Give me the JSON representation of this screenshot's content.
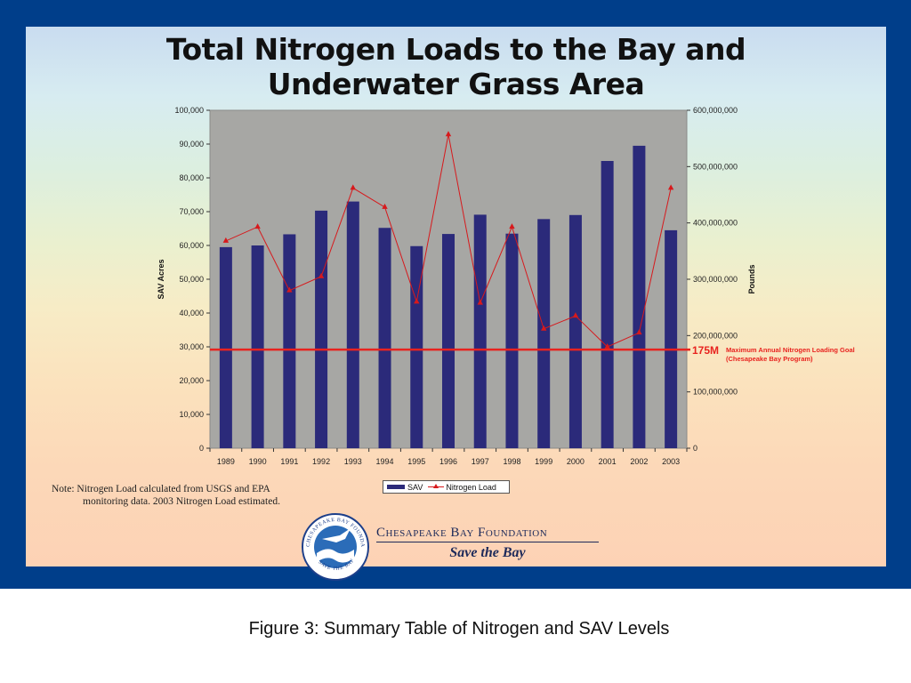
{
  "slide": {
    "caption": "Figure 3:  Summary Table of Nitrogen and SAV Levels"
  },
  "note": {
    "line1": "Note:  Nitrogen Load calculated from USGS and EPA",
    "line2": "monitoring data.  2003 Nitrogen Load estimated."
  },
  "logo": {
    "seal_text_top": "CHESAPEAKE BAY FOUNDATION",
    "seal_text_bottom": "SAVE THE BAY",
    "org_name": "Chesapeake Bay Foundation",
    "tagline": "Save the Bay"
  },
  "colors": {
    "bar": "#2b2a7a",
    "line": "#d7191c",
    "goal_line": "#e8231f",
    "plot_bg": "#a7a7a4",
    "frame": "#003e8a"
  },
  "chart_data": {
    "type": "bar",
    "title": [
      "Total Nitrogen Loads to the Bay and",
      "Underwater Grass Area"
    ],
    "categories": [
      "1989",
      "1990",
      "1991",
      "1992",
      "1993",
      "1994",
      "1995",
      "1996",
      "1997",
      "1998",
      "1999",
      "2000",
      "2001",
      "2002",
      "2003"
    ],
    "series": [
      {
        "name": "SAV",
        "type": "bar",
        "axis": "left",
        "values": [
          59500,
          60000,
          63300,
          70300,
          73000,
          65200,
          59800,
          63400,
          69100,
          63500,
          67800,
          69000,
          85000,
          89500,
          64500
        ]
      },
      {
        "name": "Nitrogen Load",
        "type": "line",
        "axis": "right",
        "values": [
          368000000,
          393000000,
          280000000,
          305000000,
          462000000,
          428000000,
          260000000,
          557000000,
          258000000,
          393000000,
          212000000,
          235000000,
          180000000,
          205000000,
          462000000
        ]
      }
    ],
    "ylabel": "SAV Acres",
    "y2label": "Pounds",
    "ylim": [
      0,
      100000
    ],
    "y2lim": [
      0,
      600000000
    ],
    "yticks": [
      "0",
      "10,000",
      "20,000",
      "30,000",
      "40,000",
      "50,000",
      "60,000",
      "70,000",
      "80,000",
      "90,000",
      "100,000"
    ],
    "y2ticks": [
      "0",
      "100,000,000",
      "200,000,000",
      "300,000,000",
      "400,000,000",
      "500,000,000",
      "600,000,000"
    ],
    "goal": {
      "value": 175000000,
      "label": "175M",
      "annotation_line1": "Maximum Annual Nitrogen Loading Goal",
      "annotation_line2": "(Chesapeake Bay Program)"
    },
    "legend": {
      "placement": "bottom",
      "sav": "SAV",
      "nitrogen": "Nitrogen Load"
    },
    "grid": false
  }
}
